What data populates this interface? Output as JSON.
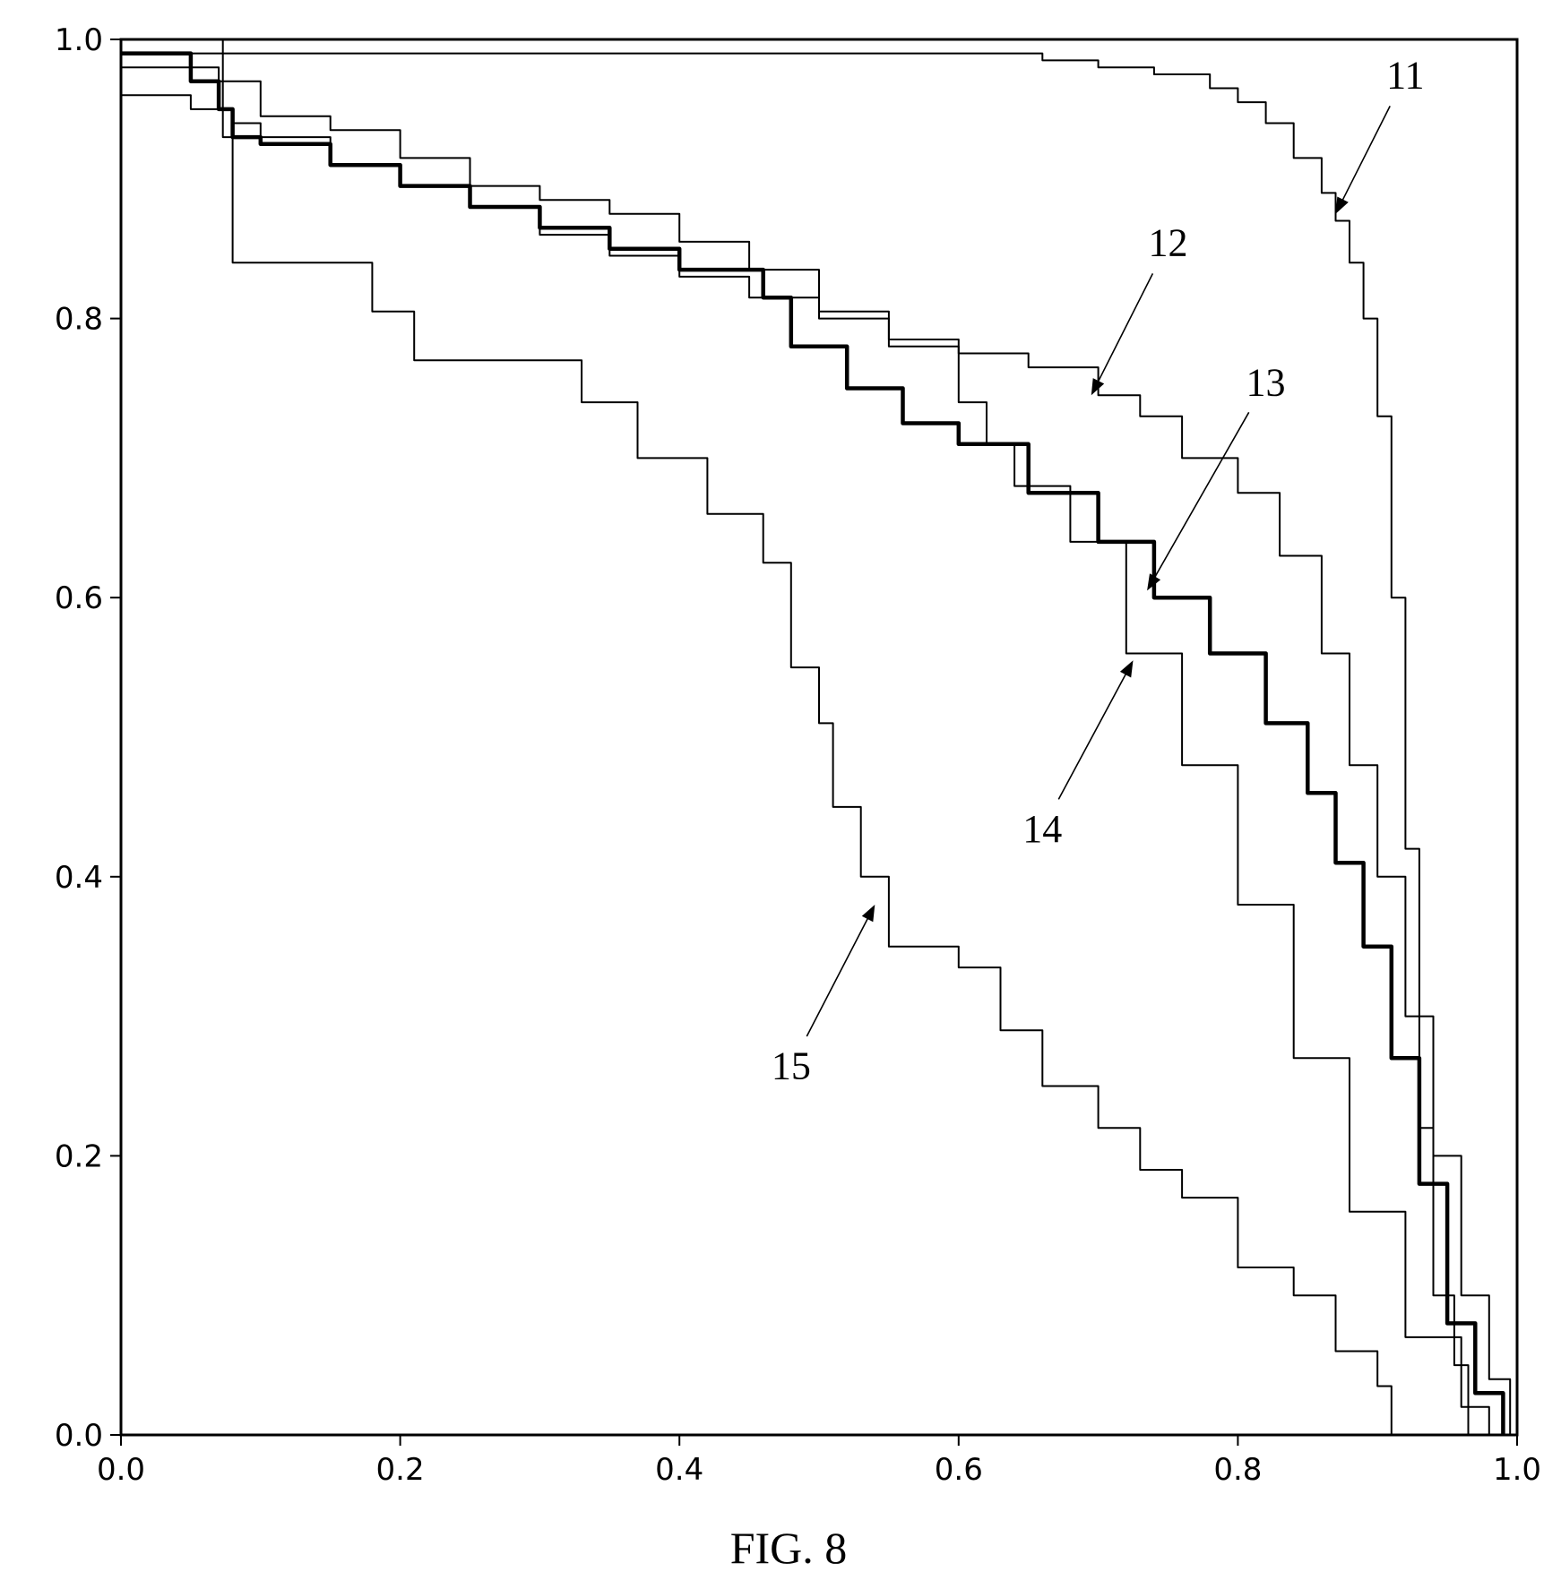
{
  "figure": {
    "caption": "FIG. 8"
  },
  "chart_data": {
    "type": "line",
    "title": "",
    "xlabel": "",
    "ylabel": "",
    "xlim": [
      0.0,
      1.0
    ],
    "ylim": [
      0.0,
      1.0
    ],
    "grid": false,
    "x_ticks": [
      "0.0",
      "0.2",
      "0.4",
      "0.6",
      "0.8",
      "1.0"
    ],
    "y_ticks": [
      "0.0",
      "0.2",
      "0.4",
      "0.6",
      "0.8",
      "1.0"
    ],
    "tick_values": [
      0.0,
      0.2,
      0.4,
      0.6,
      0.8,
      1.0
    ],
    "series": [
      {
        "label": "11",
        "stroke": 2,
        "points": [
          [
            0.0,
            0.99
          ],
          [
            0.1,
            0.99
          ],
          [
            0.2,
            0.99
          ],
          [
            0.3,
            0.99
          ],
          [
            0.4,
            0.99
          ],
          [
            0.5,
            0.99
          ],
          [
            0.6,
            0.99
          ],
          [
            0.63,
            0.99
          ],
          [
            0.66,
            0.985
          ],
          [
            0.7,
            0.98
          ],
          [
            0.74,
            0.975
          ],
          [
            0.78,
            0.965
          ],
          [
            0.8,
            0.955
          ],
          [
            0.82,
            0.94
          ],
          [
            0.84,
            0.915
          ],
          [
            0.86,
            0.89
          ],
          [
            0.87,
            0.87
          ],
          [
            0.88,
            0.84
          ],
          [
            0.89,
            0.8
          ],
          [
            0.9,
            0.73
          ],
          [
            0.91,
            0.6
          ],
          [
            0.92,
            0.42
          ],
          [
            0.93,
            0.22
          ],
          [
            0.94,
            0.1
          ],
          [
            0.955,
            0.05
          ],
          [
            0.965,
            0.0
          ]
        ],
        "callout": {
          "text_at": [
            0.92,
            0.965
          ],
          "arrow_to": [
            0.87,
            0.875
          ]
        }
      },
      {
        "label": "12",
        "stroke": 2,
        "points": [
          [
            0.0,
            0.96
          ],
          [
            0.03,
            0.96
          ],
          [
            0.05,
            0.95
          ],
          [
            0.08,
            0.94
          ],
          [
            0.1,
            0.93
          ],
          [
            0.15,
            0.91
          ],
          [
            0.2,
            0.895
          ],
          [
            0.25,
            0.88
          ],
          [
            0.3,
            0.86
          ],
          [
            0.35,
            0.845
          ],
          [
            0.4,
            0.83
          ],
          [
            0.45,
            0.815
          ],
          [
            0.5,
            0.8
          ],
          [
            0.55,
            0.785
          ],
          [
            0.6,
            0.775
          ],
          [
            0.65,
            0.765
          ],
          [
            0.7,
            0.745
          ],
          [
            0.73,
            0.73
          ],
          [
            0.76,
            0.7
          ],
          [
            0.8,
            0.675
          ],
          [
            0.83,
            0.63
          ],
          [
            0.86,
            0.56
          ],
          [
            0.88,
            0.48
          ],
          [
            0.9,
            0.4
          ],
          [
            0.92,
            0.3
          ],
          [
            0.94,
            0.2
          ],
          [
            0.96,
            0.1
          ],
          [
            0.98,
            0.04
          ],
          [
            0.995,
            0.0
          ]
        ],
        "callout": {
          "text_at": [
            0.75,
            0.845
          ],
          "arrow_to": [
            0.695,
            0.745
          ]
        }
      },
      {
        "label": "13",
        "stroke": 4.5,
        "points": [
          [
            0.0,
            0.99
          ],
          [
            0.03,
            0.99
          ],
          [
            0.05,
            0.97
          ],
          [
            0.07,
            0.95
          ],
          [
            0.08,
            0.93
          ],
          [
            0.1,
            0.925
          ],
          [
            0.15,
            0.91
          ],
          [
            0.2,
            0.895
          ],
          [
            0.25,
            0.88
          ],
          [
            0.3,
            0.865
          ],
          [
            0.35,
            0.85
          ],
          [
            0.4,
            0.835
          ],
          [
            0.46,
            0.815
          ],
          [
            0.48,
            0.78
          ],
          [
            0.52,
            0.75
          ],
          [
            0.56,
            0.725
          ],
          [
            0.6,
            0.71
          ],
          [
            0.65,
            0.675
          ],
          [
            0.7,
            0.64
          ],
          [
            0.74,
            0.6
          ],
          [
            0.78,
            0.56
          ],
          [
            0.82,
            0.51
          ],
          [
            0.85,
            0.46
          ],
          [
            0.87,
            0.41
          ],
          [
            0.89,
            0.35
          ],
          [
            0.91,
            0.27
          ],
          [
            0.93,
            0.18
          ],
          [
            0.95,
            0.08
          ],
          [
            0.97,
            0.03
          ],
          [
            0.99,
            0.0
          ]
        ],
        "callout": {
          "text_at": [
            0.82,
            0.745
          ],
          "arrow_to": [
            0.735,
            0.605
          ]
        }
      },
      {
        "label": "14",
        "stroke": 2,
        "points": [
          [
            0.0,
            0.98
          ],
          [
            0.03,
            0.98
          ],
          [
            0.07,
            0.97
          ],
          [
            0.1,
            0.945
          ],
          [
            0.15,
            0.935
          ],
          [
            0.2,
            0.915
          ],
          [
            0.25,
            0.895
          ],
          [
            0.3,
            0.885
          ],
          [
            0.35,
            0.875
          ],
          [
            0.4,
            0.855
          ],
          [
            0.45,
            0.835
          ],
          [
            0.5,
            0.805
          ],
          [
            0.55,
            0.78
          ],
          [
            0.6,
            0.74
          ],
          [
            0.62,
            0.71
          ],
          [
            0.64,
            0.68
          ],
          [
            0.68,
            0.64
          ],
          [
            0.72,
            0.56
          ],
          [
            0.76,
            0.48
          ],
          [
            0.8,
            0.38
          ],
          [
            0.84,
            0.27
          ],
          [
            0.88,
            0.16
          ],
          [
            0.92,
            0.07
          ],
          [
            0.96,
            0.02
          ],
          [
            0.98,
            0.0
          ]
        ],
        "callout": {
          "text_at": [
            0.66,
            0.425
          ],
          "arrow_to": [
            0.725,
            0.555
          ]
        }
      },
      {
        "label": "15",
        "stroke": 2,
        "points": [
          [
            0.0,
            1.0
          ],
          [
            0.073,
            1.0
          ],
          [
            0.073,
            0.93
          ],
          [
            0.08,
            0.84
          ],
          [
            0.17,
            0.84
          ],
          [
            0.18,
            0.805
          ],
          [
            0.21,
            0.77
          ],
          [
            0.3,
            0.77
          ],
          [
            0.33,
            0.74
          ],
          [
            0.37,
            0.7
          ],
          [
            0.42,
            0.66
          ],
          [
            0.46,
            0.625
          ],
          [
            0.48,
            0.55
          ],
          [
            0.5,
            0.51
          ],
          [
            0.51,
            0.45
          ],
          [
            0.53,
            0.4
          ],
          [
            0.55,
            0.35
          ],
          [
            0.6,
            0.335
          ],
          [
            0.63,
            0.29
          ],
          [
            0.66,
            0.25
          ],
          [
            0.7,
            0.22
          ],
          [
            0.73,
            0.19
          ],
          [
            0.76,
            0.17
          ],
          [
            0.8,
            0.12
          ],
          [
            0.84,
            0.1
          ],
          [
            0.87,
            0.06
          ],
          [
            0.9,
            0.035
          ],
          [
            0.91,
            0.0
          ]
        ],
        "callout": {
          "text_at": [
            0.48,
            0.255
          ],
          "arrow_to": [
            0.54,
            0.38
          ]
        }
      }
    ]
  }
}
